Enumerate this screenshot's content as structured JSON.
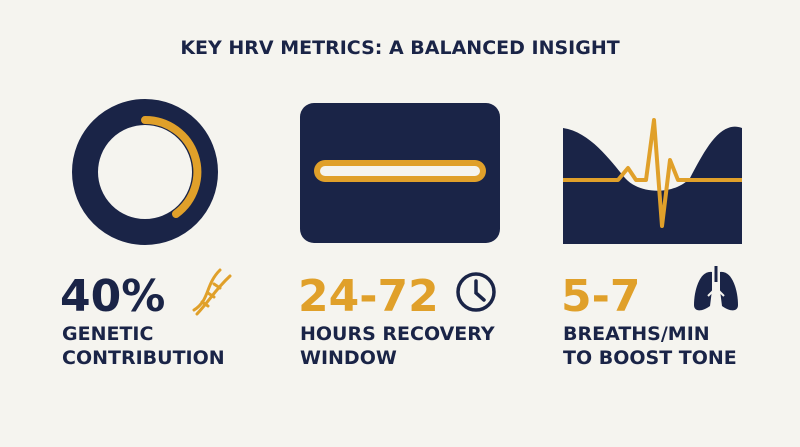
{
  "title": "KEY HRV METRICS: A BALANCED INSIGHT",
  "metrics": [
    {
      "value": "40%",
      "label": [
        "GENETIC",
        "CONTRIBUTION"
      ]
    },
    {
      "value": "24-72",
      "label": [
        "HOURS RECOVERY",
        "WINDOW"
      ]
    },
    {
      "value": "5-7",
      "label": [
        "BREATHS/MIN",
        "TO BOOST TONE"
      ]
    }
  ]
}
